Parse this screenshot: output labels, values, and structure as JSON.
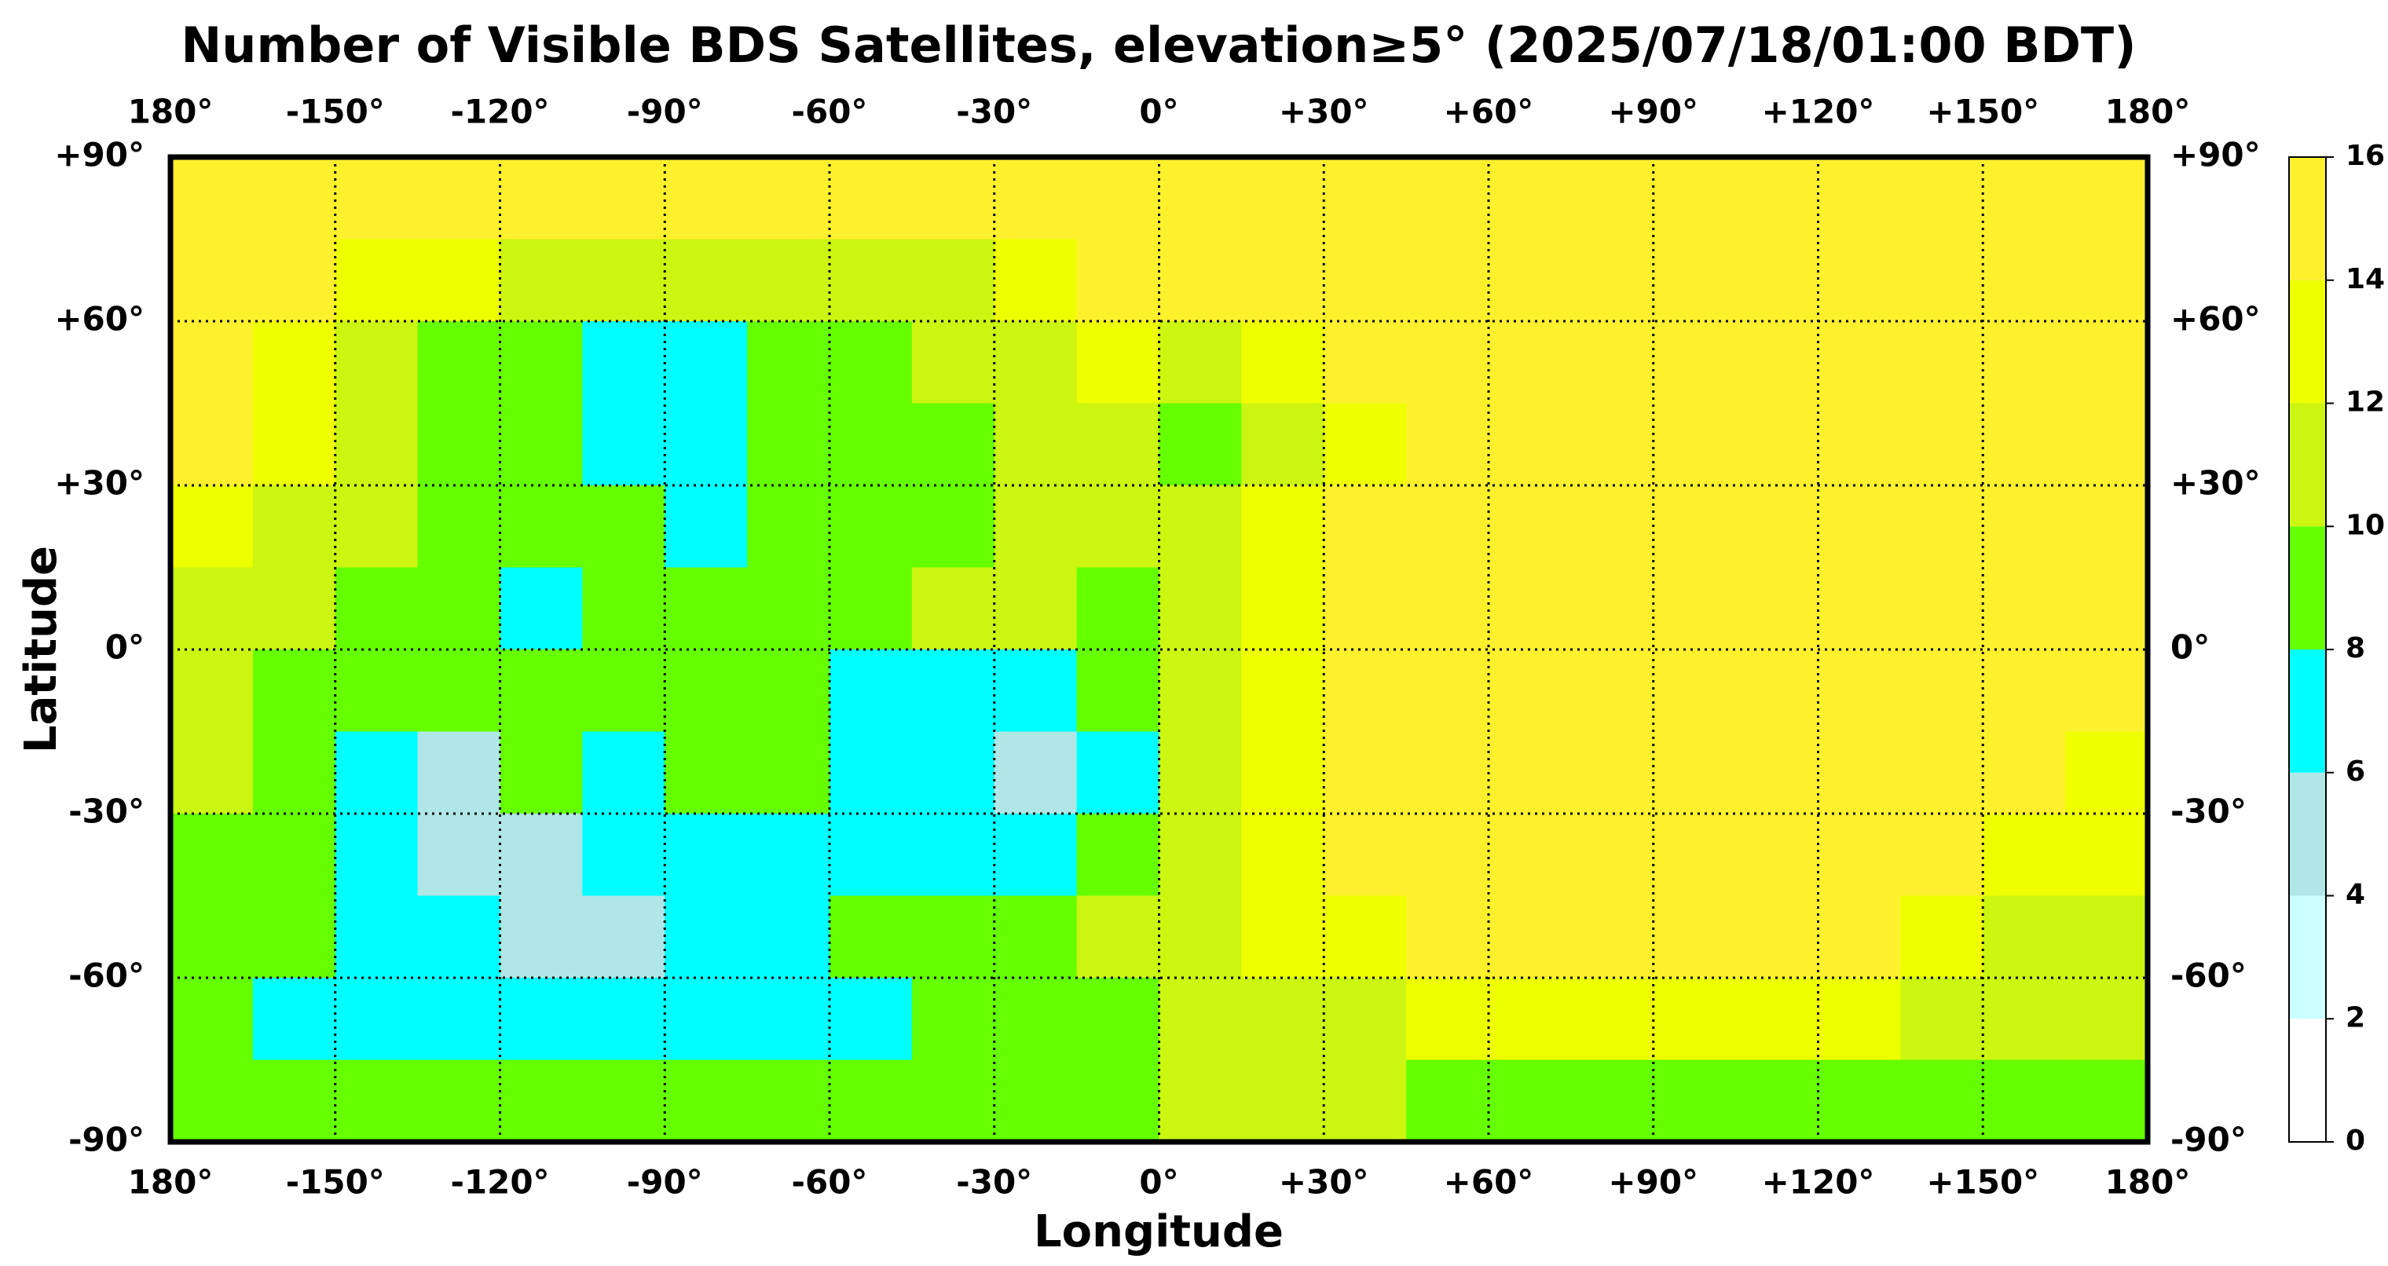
{
  "chart_data": {
    "type": "heatmap",
    "title": "Number of Visible BDS Satellites, elevation≥5° (2025/07/18/01:00 BDT)",
    "x_label": "Longitude",
    "y_label": "Latitude",
    "xlim": [
      -180,
      180
    ],
    "ylim": [
      -90,
      90
    ],
    "xticks": [
      {
        "value": -180,
        "label": "180°"
      },
      {
        "value": -150,
        "label": "-150°"
      },
      {
        "value": -120,
        "label": "-120°"
      },
      {
        "value": -90,
        "label": "-90°"
      },
      {
        "value": -60,
        "label": "-60°"
      },
      {
        "value": -30,
        "label": "-30°"
      },
      {
        "value": 0,
        "label": "0°"
      },
      {
        "value": 30,
        "label": "+30°"
      },
      {
        "value": 60,
        "label": "+60°"
      },
      {
        "value": 90,
        "label": "+90°"
      },
      {
        "value": 120,
        "label": "+120°"
      },
      {
        "value": 150,
        "label": "+150°"
      },
      {
        "value": 180,
        "label": "180°"
      }
    ],
    "yticks": [
      {
        "value": 90,
        "label": "+90°"
      },
      {
        "value": 60,
        "label": "+60°"
      },
      {
        "value": 30,
        "label": "+30°"
      },
      {
        "value": 0,
        "label": "0°"
      },
      {
        "value": -30,
        "label": "-30°"
      },
      {
        "value": -60,
        "label": "-60°"
      },
      {
        "value": -90,
        "label": "-90°"
      }
    ],
    "grid": true,
    "x_bins": [
      -180,
      -165,
      -150,
      -135,
      -120,
      -105,
      -90,
      -75,
      -60,
      -45,
      -30,
      -15,
      0,
      15,
      30,
      45,
      60,
      75,
      90,
      105,
      120,
      135,
      150,
      165,
      180
    ],
    "y_bins": [
      90,
      75,
      60,
      45,
      30,
      15,
      0,
      -15,
      -30,
      -45,
      -60,
      -75,
      -90
    ],
    "z": [
      [
        15,
        15,
        15,
        15,
        15,
        15,
        15,
        15,
        15,
        15,
        15,
        15,
        15,
        15,
        15,
        15,
        15,
        15,
        15,
        15,
        15,
        15,
        15,
        15
      ],
      [
        15,
        15,
        13,
        13,
        11,
        11,
        11,
        11,
        11,
        11,
        13,
        15,
        15,
        15,
        15,
        15,
        15,
        15,
        15,
        15,
        15,
        15,
        15,
        15
      ],
      [
        15,
        13,
        11,
        9,
        9,
        7,
        7,
        9,
        9,
        11,
        11,
        13,
        11,
        13,
        15,
        15,
        15,
        15,
        15,
        15,
        15,
        15,
        15,
        15
      ],
      [
        15,
        13,
        11,
        9,
        9,
        7,
        7,
        9,
        9,
        9,
        11,
        11,
        9,
        11,
        13,
        15,
        15,
        15,
        15,
        15,
        15,
        15,
        15,
        15
      ],
      [
        13,
        11,
        11,
        9,
        9,
        9,
        7,
        9,
        9,
        9,
        11,
        11,
        11,
        13,
        15,
        15,
        15,
        15,
        15,
        15,
        15,
        15,
        15,
        15
      ],
      [
        11,
        11,
        9,
        9,
        7,
        9,
        9,
        9,
        9,
        11,
        11,
        9,
        11,
        13,
        15,
        15,
        15,
        15,
        15,
        15,
        15,
        15,
        15,
        15
      ],
      [
        11,
        9,
        9,
        9,
        9,
        9,
        9,
        9,
        7,
        7,
        7,
        9,
        11,
        13,
        15,
        15,
        15,
        15,
        15,
        15,
        15,
        15,
        15,
        15
      ],
      [
        11,
        9,
        7,
        5,
        9,
        7,
        9,
        9,
        7,
        7,
        5,
        7,
        11,
        13,
        15,
        15,
        15,
        15,
        15,
        15,
        15,
        15,
        15,
        13
      ],
      [
        9,
        9,
        7,
        5,
        5,
        7,
        7,
        7,
        7,
        7,
        7,
        9,
        11,
        13,
        15,
        15,
        15,
        15,
        15,
        15,
        15,
        15,
        13,
        13
      ],
      [
        9,
        9,
        7,
        7,
        5,
        5,
        7,
        7,
        9,
        9,
        9,
        11,
        11,
        13,
        13,
        15,
        15,
        15,
        15,
        15,
        15,
        13,
        11,
        11
      ],
      [
        9,
        7,
        7,
        7,
        7,
        7,
        7,
        7,
        7,
        9,
        9,
        9,
        11,
        11,
        11,
        13,
        13,
        13,
        13,
        13,
        13,
        11,
        11,
        11
      ],
      [
        9,
        9,
        9,
        9,
        9,
        9,
        9,
        9,
        9,
        9,
        9,
        9,
        11,
        11,
        11,
        9,
        9,
        9,
        9,
        9,
        9,
        9,
        9,
        9
      ]
    ],
    "levels": [
      0,
      2,
      4,
      6,
      8,
      10,
      12,
      14,
      16
    ],
    "colors": [
      "#ffffff",
      "#ccffff",
      "#b0e6e6",
      "#00ffff",
      "#66ff00",
      "#ccf511",
      "#eeff00",
      "#fff02e"
    ],
    "cbar_ticks": [
      0,
      2,
      4,
      6,
      8,
      10,
      12,
      14,
      16
    ]
  }
}
